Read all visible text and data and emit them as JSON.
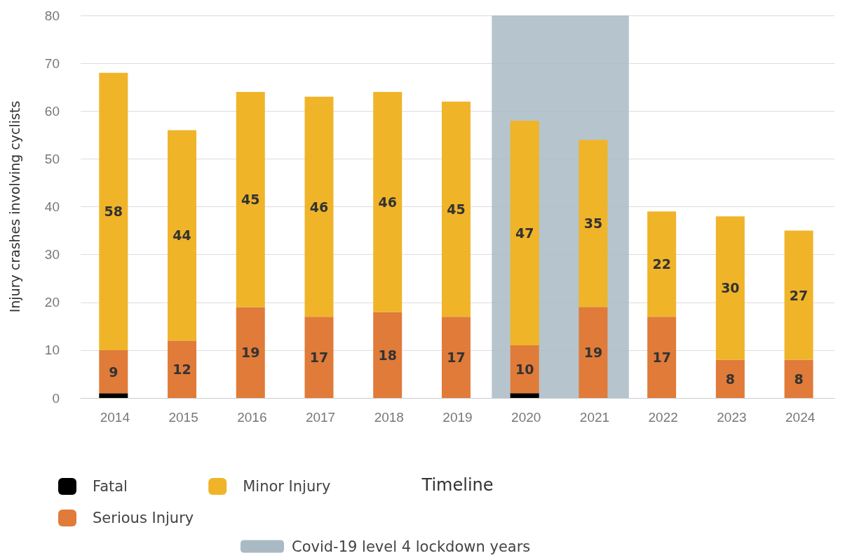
{
  "chart_data": {
    "type": "bar",
    "stacked": true,
    "xlabel": "Timeline",
    "ylabel": "Injury crashes involving cyclists",
    "categories": [
      "2014",
      "2015",
      "2016",
      "2017",
      "2018",
      "2019",
      "2020",
      "2021",
      "2022",
      "2023",
      "2024"
    ],
    "series": [
      {
        "name": "Fatal",
        "color": "#000000",
        "values": [
          1,
          0,
          0,
          0,
          0,
          0,
          1,
          0,
          0,
          0,
          0
        ],
        "value_labels": [
          null,
          null,
          null,
          null,
          null,
          null,
          null,
          null,
          null,
          null,
          null
        ]
      },
      {
        "name": "Serious Injury",
        "color": "#e07b39",
        "values": [
          9,
          12,
          19,
          17,
          18,
          17,
          10,
          19,
          17,
          8,
          8
        ],
        "value_labels": [
          "9",
          "12",
          "19",
          "17",
          "18",
          "17",
          "10",
          "19",
          "17",
          "8",
          "8"
        ]
      },
      {
        "name": "Minor Injury",
        "color": "#f0b429",
        "values": [
          58,
          44,
          45,
          46,
          46,
          45,
          47,
          35,
          22,
          30,
          27
        ],
        "value_labels": [
          "58",
          "44",
          "45",
          "46",
          "46",
          "45",
          "47",
          "35",
          "22",
          "30",
          "27"
        ]
      }
    ],
    "ylim": [
      0,
      80
    ],
    "yticks": [
      0,
      10,
      20,
      30,
      40,
      50,
      60,
      70,
      80
    ],
    "grid": "y",
    "legend": "bottom left",
    "bands": [
      {
        "axis": "x",
        "from": "2020",
        "to": "2021",
        "label": "Covid-19 level 4 lockdown years",
        "color": "#a9bac4"
      }
    ]
  }
}
